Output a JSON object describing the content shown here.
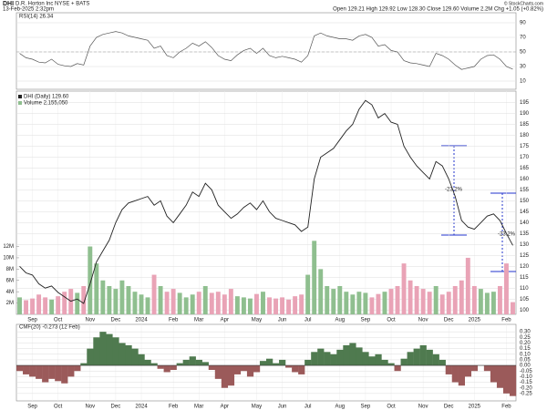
{
  "header": {
    "symbol": "DHI",
    "name": "D.R. Horton Inc  NYSE + BATS",
    "date": "13-Feb-2025 2:32pm",
    "quote": "Open 129.21  High 129.92  Low 128.30  Close 129.60  Volume 2.2M  Chg +1.05 (+0.82%)",
    "credit": "© StockCharts.com"
  },
  "chart_data": [
    {
      "type": "line",
      "title": "RSI(14) 26.34",
      "color": "#555555",
      "values": [
        48,
        42,
        40,
        36,
        35,
        40,
        33,
        31,
        30,
        34,
        32,
        58,
        70,
        74,
        76,
        78,
        76,
        72,
        70,
        68,
        66,
        55,
        58,
        45,
        42,
        50,
        55,
        62,
        58,
        64,
        56,
        45,
        40,
        38,
        46,
        52,
        55,
        48,
        55,
        45,
        42,
        44,
        42,
        40,
        36,
        45,
        72,
        76,
        72,
        70,
        68,
        68,
        66,
        72,
        74,
        70,
        58,
        60,
        52,
        50,
        38,
        35,
        34,
        32,
        30,
        48,
        45,
        40,
        32,
        26,
        28,
        30,
        40,
        45,
        46,
        40,
        30,
        26.34
      ],
      "ylim": [
        0,
        100
      ],
      "yticks": [
        10,
        30,
        50,
        70,
        90
      ],
      "grid": true
    },
    {
      "type": "line",
      "grid": true,
      "categories": [
        null,
        null,
        "Sep",
        null,
        null,
        null,
        "Oct",
        null,
        null,
        null,
        null,
        "Nov",
        null,
        null,
        null,
        "Dec",
        null,
        null,
        null,
        "2024",
        null,
        null,
        null,
        null,
        "Feb",
        null,
        null,
        null,
        "Mar",
        null,
        null,
        null,
        "Apr",
        null,
        null,
        null,
        null,
        "May",
        null,
        null,
        null,
        "Jun",
        null,
        null,
        null,
        "Jul",
        null,
        null,
        null,
        null,
        "Aug",
        null,
        null,
        null,
        "Sep",
        null,
        null,
        null,
        "Oct",
        null,
        null,
        null,
        null,
        "Nov",
        null,
        null,
        null,
        "Dec",
        null,
        null,
        null,
        "2025",
        null,
        null,
        null,
        null,
        "Feb",
        null
      ],
      "series": [
        {
          "name": "DHI (Daily) 129.60",
          "color": "#222222",
          "values": [
            120,
            117,
            116,
            112,
            110,
            111,
            108,
            106,
            104,
            105,
            103,
            112,
            122,
            127,
            132,
            140,
            146,
            149,
            150,
            151,
            152,
            148,
            150,
            143,
            140,
            144,
            148,
            154,
            152,
            158,
            155,
            148,
            145,
            142,
            144,
            147,
            149,
            146,
            150,
            145,
            142,
            141,
            140,
            139,
            136,
            138,
            160,
            170,
            172,
            174,
            178,
            182,
            185,
            192,
            196,
            194,
            188,
            190,
            186,
            185,
            175,
            170,
            166,
            163,
            160,
            168,
            166,
            160,
            152,
            141,
            138,
            137,
            140,
            143,
            144,
            141,
            135,
            129.6
          ]
        },
        {
          "name": "Volume 2,155,050",
          "axis": "y2",
          "color": "#8fbf8f",
          "down_color": "#e9a3b6",
          "values": [
            3000000,
            2500000,
            2800000,
            3500000,
            3000000,
            2600000,
            3200000,
            4000000,
            4500000,
            3800000,
            5000000,
            12000000,
            9000000,
            6000000,
            5000000,
            4500000,
            6000000,
            5000000,
            4000000,
            3500000,
            3000000,
            7000000,
            5000000,
            4000000,
            4500000,
            3800000,
            3000000,
            3500000,
            4000000,
            5000000,
            3800000,
            4000000,
            3500000,
            4500000,
            3200000,
            3000000,
            2800000,
            3600000,
            4000000,
            3000000,
            2800000,
            3000000,
            2600000,
            3200000,
            3500000,
            7000000,
            13000000,
            8000000,
            5000000,
            4500000,
            5000000,
            4000000,
            3500000,
            4000000,
            3800000,
            3000000,
            3600000,
            4000000,
            4500000,
            5000000,
            9000000,
            6000000,
            5000000,
            4500000,
            4000000,
            5000000,
            3500000,
            4000000,
            5000000,
            6000000,
            10000000,
            5000000,
            4500000,
            3800000,
            4000000,
            5000000,
            9000000,
            2155050
          ]
        }
      ],
      "ylim": [
        98,
        199
      ],
      "yticks": [
        100,
        105,
        110,
        115,
        120,
        125,
        130,
        135,
        140,
        145,
        150,
        155,
        160,
        165,
        170,
        175,
        180,
        185,
        190,
        195
      ],
      "y2lim": [
        0,
        39000000
      ],
      "y2ticks": [
        {
          "value": 2000000,
          "label": "2M"
        },
        {
          "value": 4000000,
          "label": "4M"
        },
        {
          "value": 6000000,
          "label": "6M"
        },
        {
          "value": 8000000,
          "label": "8M"
        },
        {
          "value": 10000000,
          "label": "10M"
        },
        {
          "value": 12000000,
          "label": "12M"
        }
      ],
      "annotations": [
        "-23.2%",
        "-23.2%"
      ]
    },
    {
      "type": "bar",
      "title": "CMF(20) -0.273 (12 Feb)",
      "color": "#4f7a4f",
      "down_color": "#9b5a5a",
      "values": [
        -0.05,
        -0.08,
        -0.1,
        -0.12,
        -0.15,
        -0.12,
        -0.14,
        -0.16,
        -0.1,
        -0.05,
        0.02,
        0.15,
        0.25,
        0.3,
        0.28,
        0.25,
        0.2,
        0.18,
        0.15,
        0.1,
        0.05,
        0.02,
        -0.03,
        -0.06,
        -0.04,
        0.02,
        0.05,
        0.08,
        0.05,
        0.03,
        -0.04,
        -0.12,
        -0.2,
        -0.18,
        -0.08,
        -0.05,
        -0.1,
        -0.06,
        0.04,
        0.06,
        0.02,
        0.05,
        -0.02,
        -0.06,
        -0.08,
        0.05,
        0.12,
        0.15,
        0.12,
        0.1,
        0.14,
        0.18,
        0.2,
        0.16,
        0.12,
        0.08,
        0.1,
        0.05,
        0.02,
        -0.05,
        0.06,
        0.12,
        0.15,
        0.18,
        0.14,
        0.1,
        0.05,
        -0.08,
        -0.15,
        -0.18,
        -0.1,
        -0.05,
        0.0,
        -0.05,
        -0.15,
        -0.2,
        -0.25,
        -0.273
      ],
      "ylim": [
        -0.3,
        0.35
      ],
      "yticks": [
        -0.25,
        {
          "value": -0.2,
          "label": "-0.20"
        },
        -0.15,
        {
          "value": -0.1,
          "label": "-0.10"
        },
        -0.05,
        {
          "value": 0,
          "label": "0.00"
        },
        0.05,
        {
          "value": 0.1,
          "label": "0.10"
        },
        0.15,
        {
          "value": 0.2,
          "label": "0.20"
        },
        0.25,
        {
          "value": 0.3,
          "label": "0.30"
        }
      ],
      "grid": true
    }
  ]
}
